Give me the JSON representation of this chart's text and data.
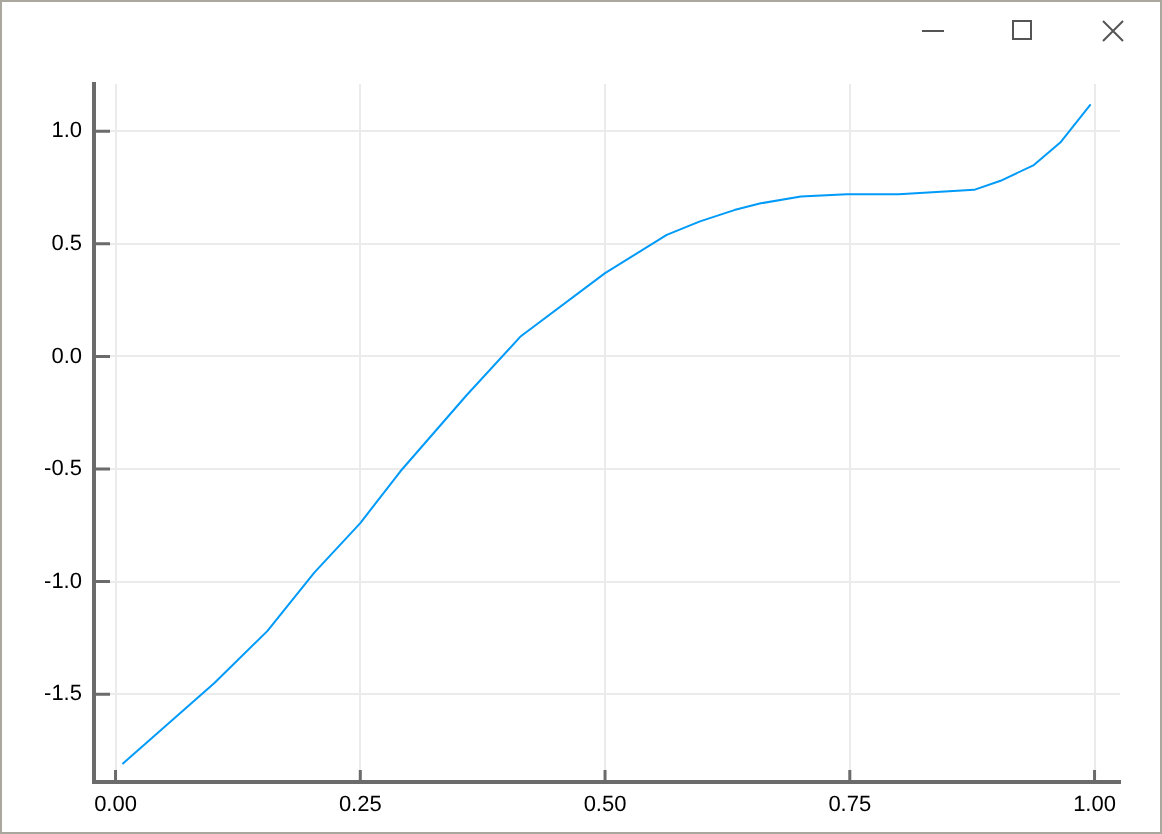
{
  "chart_data": {
    "type": "line",
    "x": [
      0.007,
      0.101,
      0.155,
      0.203,
      0.25,
      0.291,
      0.359,
      0.414,
      0.5,
      0.563,
      0.597,
      0.632,
      0.659,
      0.7,
      0.747,
      0.8,
      0.877,
      0.904,
      0.938,
      0.965,
      0.996
    ],
    "values": [
      -1.81,
      -1.45,
      -1.22,
      -0.96,
      -0.74,
      -0.51,
      -0.17,
      0.09,
      0.37,
      0.54,
      0.6,
      0.65,
      0.68,
      0.71,
      0.72,
      0.72,
      0.74,
      0.78,
      0.85,
      0.95,
      1.12
    ],
    "color": "#009af9",
    "xlim": [
      -0.022,
      1.026
    ],
    "ylim": [
      -1.89,
      1.21
    ],
    "xticks": [
      {
        "value": 0,
        "label": "0.00"
      },
      {
        "value": 0.25,
        "label": "0.25"
      },
      {
        "value": 0.5,
        "label": "0.50"
      },
      {
        "value": 0.75,
        "label": "0.75"
      },
      {
        "value": 1,
        "label": "1.00"
      }
    ],
    "yticks": [
      {
        "value": -1.5,
        "label": "-1.5"
      },
      {
        "value": -1,
        "label": "-1.0"
      },
      {
        "value": -0.5,
        "label": "-0.5"
      },
      {
        "value": 0,
        "label": "0.0"
      },
      {
        "value": 0.5,
        "label": "0.5"
      },
      {
        "value": 1,
        "label": "1.0"
      }
    ],
    "grid": true
  }
}
